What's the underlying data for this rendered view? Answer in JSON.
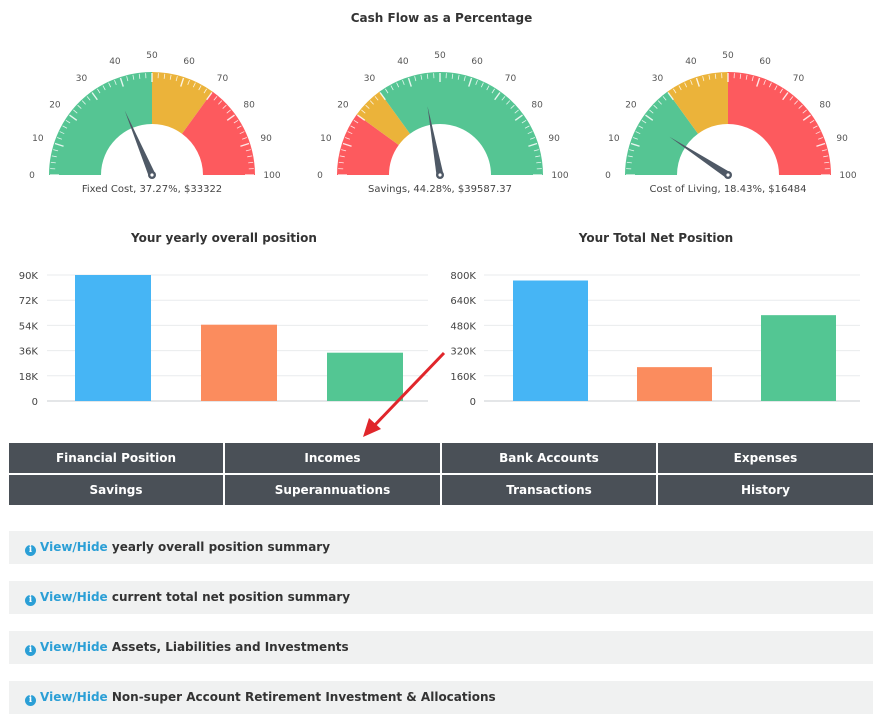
{
  "cashflow": {
    "title": "Cash Flow as a Percentage",
    "ticks": [
      "0",
      "10",
      "20",
      "30",
      "40",
      "50",
      "60",
      "70",
      "80",
      "90",
      "100"
    ],
    "zone_colors": {
      "green": "#55c593",
      "yellow": "#ebb33a",
      "red": "#fd5a5e"
    },
    "gauges": [
      {
        "label": "Fixed Cost, 37.27%, $33322",
        "value": 37.27,
        "bands": [
          {
            "from": 0,
            "to": 50,
            "color": "#55c593"
          },
          {
            "from": 50,
            "to": 70,
            "color": "#ebb33a"
          },
          {
            "from": 70,
            "to": 100,
            "color": "#fd5a5e"
          }
        ]
      },
      {
        "label": "Savings, 44.28%, $39587.37",
        "value": 44.28,
        "bands": [
          {
            "from": 0,
            "to": 20,
            "color": "#fd5a5e"
          },
          {
            "from": 20,
            "to": 30,
            "color": "#ebb33a"
          },
          {
            "from": 30,
            "to": 100,
            "color": "#55c593"
          }
        ]
      },
      {
        "label": "Cost of Living, 18.43%, $16484",
        "value": 18.43,
        "bands": [
          {
            "from": 0,
            "to": 30,
            "color": "#55c593"
          },
          {
            "from": 30,
            "to": 50,
            "color": "#ebb33a"
          },
          {
            "from": 50,
            "to": 100,
            "color": "#fd5a5e"
          }
        ]
      }
    ]
  },
  "chart_data": [
    {
      "type": "bar",
      "title": "Your yearly overall position",
      "categories": [
        "",
        "",
        ""
      ],
      "values": [
        90000,
        54500,
        34500
      ],
      "colors": [
        "#46b5f5",
        "#fb8c5e",
        "#53c693"
      ],
      "yticks": [
        "0",
        "18K",
        "36K",
        "54K",
        "72K",
        "90K"
      ],
      "ylim": [
        0,
        90000
      ],
      "grid": true
    },
    {
      "type": "bar",
      "title": "Your Total Net Position",
      "categories": [
        "",
        "",
        ""
      ],
      "values": [
        765000,
        215000,
        545000
      ],
      "colors": [
        "#46b5f5",
        "#fb8c5e",
        "#53c693"
      ],
      "yticks": [
        "0",
        "160K",
        "320K",
        "480K",
        "640K",
        "800K"
      ],
      "ylim": [
        0,
        800000
      ],
      "grid": true
    }
  ],
  "nav": {
    "items": [
      "Financial Position",
      "Incomes",
      "Bank Accounts",
      "Expenses",
      "Savings",
      "Superannuations",
      "Transactions",
      "History"
    ]
  },
  "panels": {
    "toggle_label": "View/Hide",
    "items": [
      "yearly overall position summary",
      "current total net position summary",
      "Assets, Liabilities and Investments",
      "Non-super Account Retirement Investment & Allocations"
    ]
  },
  "annotation_color": "#e0262b"
}
